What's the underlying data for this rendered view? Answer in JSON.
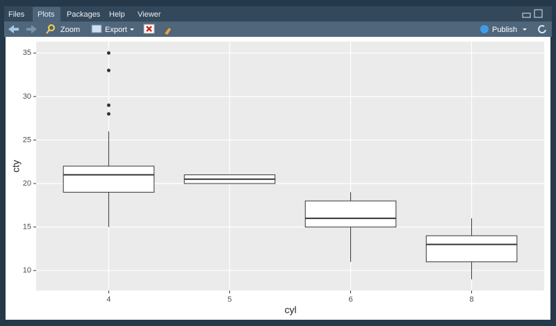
{
  "tabs": [
    "Files",
    "Plots",
    "Packages",
    "Help",
    "Viewer"
  ],
  "toolbar": {
    "zoom": "Zoom",
    "export": "Export",
    "publish": "Publish"
  },
  "chart_data": {
    "type": "boxplot",
    "x_label": "cyl",
    "y_label": "cty",
    "categories": [
      "4",
      "5",
      "6",
      "8"
    ],
    "boxes": [
      {
        "whislo": 15,
        "q1": 19,
        "median": 21,
        "q3": 22,
        "whishi": 26,
        "outliers": [
          28,
          29,
          33,
          35
        ]
      },
      {
        "whislo": 20,
        "q1": 20,
        "median": 20.5,
        "q3": 21,
        "whishi": 21,
        "outliers": []
      },
      {
        "whislo": 11,
        "q1": 15,
        "median": 16,
        "q3": 18,
        "whishi": 19,
        "outliers": []
      },
      {
        "whislo": 9,
        "q1": 11,
        "median": 13,
        "q3": 14,
        "whishi": 16,
        "outliers": []
      }
    ],
    "color": "#333333",
    "fill": "#ffffff",
    "ylim": [
      7.7,
      36.3
    ],
    "yticks": [
      10,
      15,
      20,
      25,
      30,
      35
    ],
    "grid": true
  }
}
